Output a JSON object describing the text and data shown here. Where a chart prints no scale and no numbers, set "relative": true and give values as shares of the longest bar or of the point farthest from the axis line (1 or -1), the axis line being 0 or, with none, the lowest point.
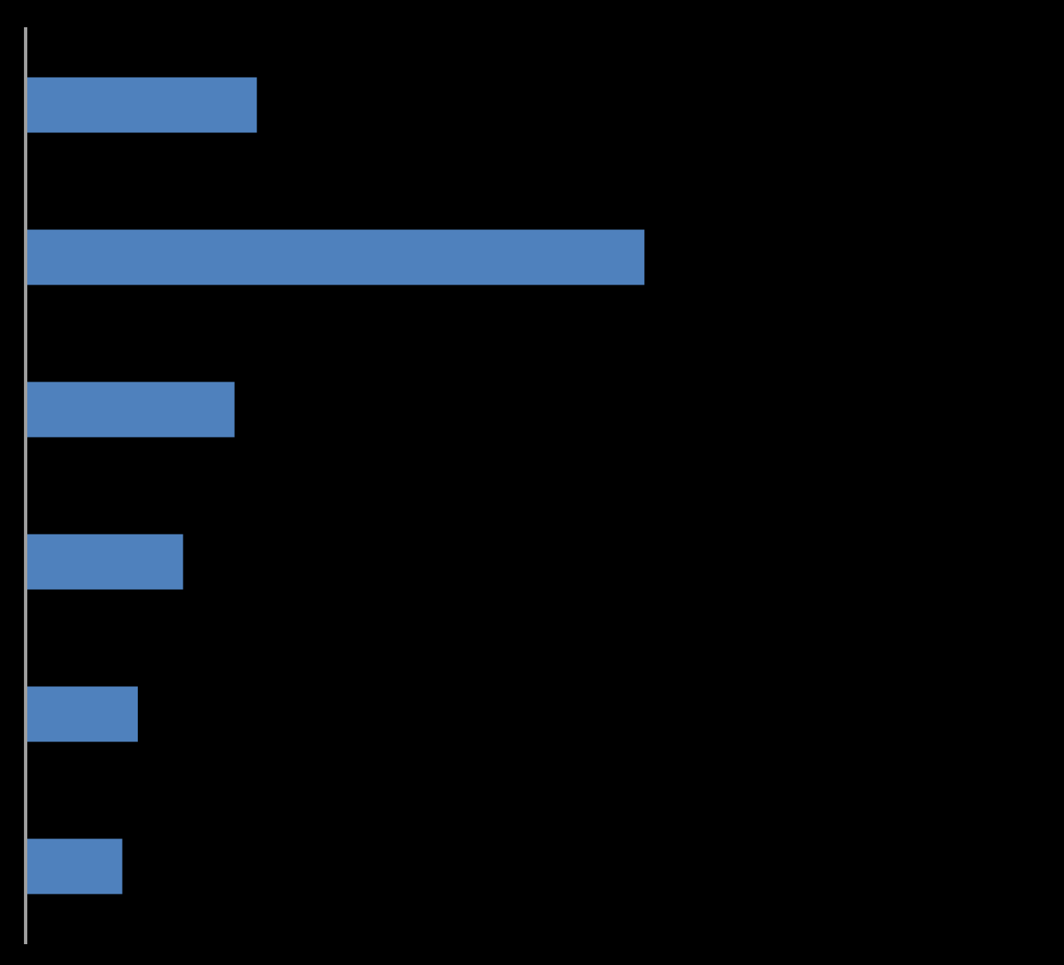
{
  "chart_data": {
    "type": "bar",
    "orientation": "horizontal",
    "relative": true,
    "categories": [
      null,
      null,
      null,
      null,
      null,
      null
    ],
    "values": [
      0.375,
      1,
      0.339,
      0.256,
      0.183,
      0.158
    ],
    "color": "#4f81bd"
  }
}
